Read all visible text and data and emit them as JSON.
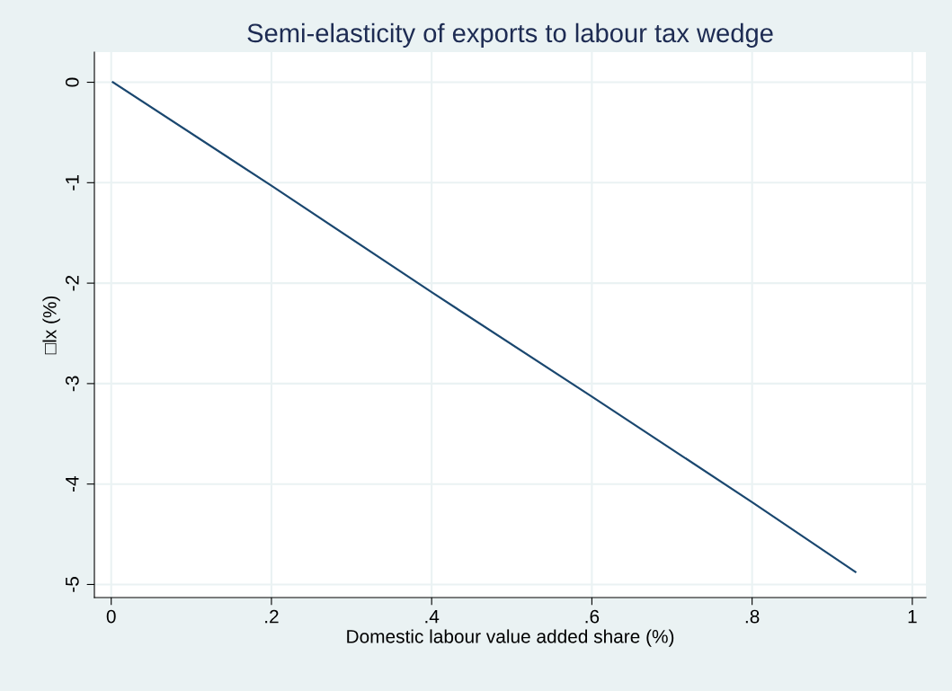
{
  "chart_data": {
    "type": "line",
    "title": "Semi-elasticity of exports to labour tax wedge",
    "xlabel": "Domestic labour value added share (%)",
    "ylabel": "□lx (%)",
    "x": [
      0.002,
      0.2,
      0.4,
      0.6,
      0.8,
      0.929
    ],
    "series": [
      {
        "color": "#1a476f",
        "values": [
          0,
          -1.03,
          -2.09,
          -3.13,
          -4.18,
          -4.875
        ]
      }
    ],
    "xlim": [
      -0.021,
      1.017
    ],
    "ylim": [
      -5.13,
      0.3
    ],
    "xticks": [
      {
        "value": 0,
        "label": "0"
      },
      {
        "value": 0.2,
        "label": ".2"
      },
      {
        "value": 0.4,
        "label": ".4"
      },
      {
        "value": 0.6,
        "label": ".6"
      },
      {
        "value": 0.8,
        "label": ".8"
      },
      {
        "value": 1,
        "label": "1"
      }
    ],
    "yticks": [
      0,
      -1,
      -2,
      -3,
      -4,
      -5
    ],
    "grid": true,
    "marker": "none",
    "line_style": "solid"
  }
}
